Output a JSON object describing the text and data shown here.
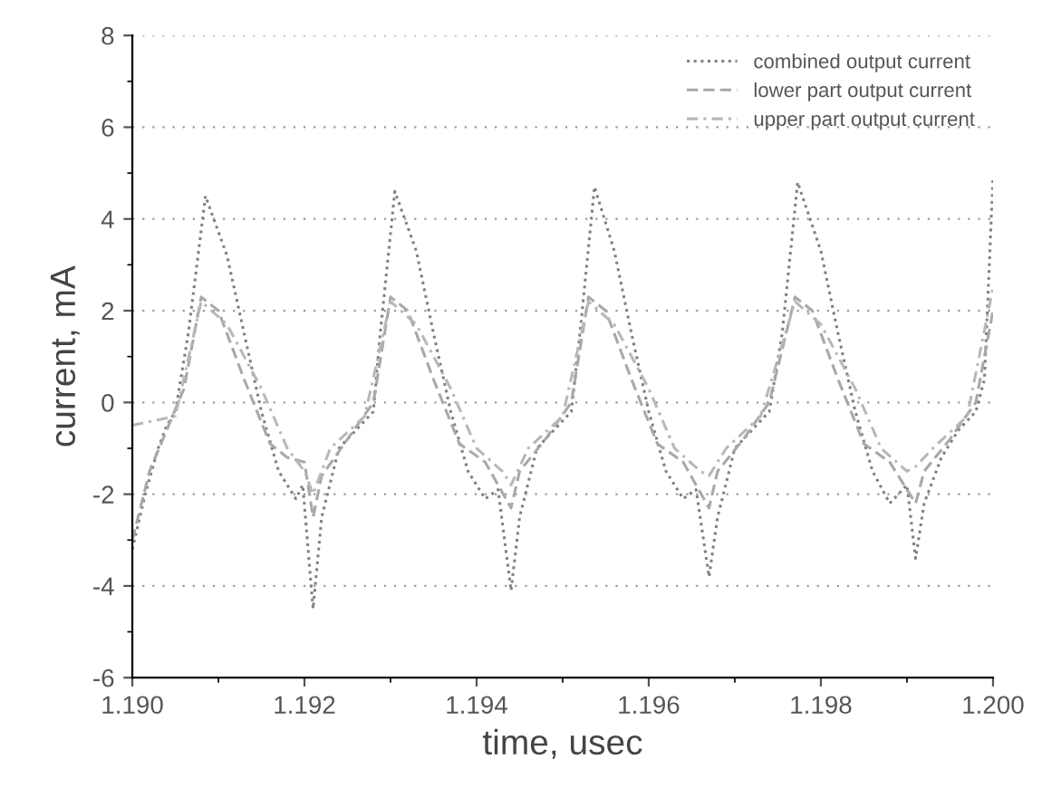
{
  "chart_data": {
    "type": "line",
    "xlabel": "time, usec",
    "ylabel": "current, mA",
    "xlim": [
      1.19,
      1.2
    ],
    "ylim": [
      -6,
      8
    ],
    "xticks": [
      {
        "value": 1.19,
        "label": "1.190"
      },
      {
        "value": 1.192,
        "label": "1.192"
      },
      {
        "value": 1.194,
        "label": "1.194"
      },
      {
        "value": 1.196,
        "label": "1.196"
      },
      {
        "value": 1.198,
        "label": "1.198"
      },
      {
        "value": 1.2,
        "label": "1.200"
      }
    ],
    "yticks": [
      -6,
      -4,
      -2,
      0,
      2,
      4,
      6,
      8
    ],
    "grid": "y",
    "legend": "top right",
    "series": [
      {
        "name": "combined output current",
        "color": "#808080",
        "line_style": "dotted",
        "x": [
          1.19,
          1.19015,
          1.1903,
          1.1904,
          1.1905,
          1.19065,
          1.19085,
          1.1911,
          1.1913,
          1.1915,
          1.1917,
          1.1919,
          1.19198,
          1.1921,
          1.1922,
          1.1924,
          1.1926,
          1.1928,
          1.19288,
          1.19305,
          1.1933,
          1.1935,
          1.1937,
          1.1939,
          1.1941,
          1.19425,
          1.1944,
          1.1945,
          1.1947,
          1.1949,
          1.1951,
          1.1952,
          1.19537,
          1.1956,
          1.1958,
          1.196,
          1.1962,
          1.1964,
          1.19655,
          1.1967,
          1.1968,
          1.197,
          1.1972,
          1.1974,
          1.19755,
          1.19773,
          1.198,
          1.1982,
          1.1984,
          1.1986,
          1.1988,
          1.199,
          1.1991,
          1.1992,
          1.1994,
          1.1996,
          1.1998,
          1.1999,
          1.2
        ],
        "values": [
          -3.2,
          -2.0,
          -1.0,
          -0.5,
          -0.2,
          1.5,
          4.5,
          3.2,
          1.5,
          -0.2,
          -1.5,
          -2.1,
          -1.8,
          -4.5,
          -2.5,
          -1.0,
          -0.6,
          -0.2,
          1.5,
          4.6,
          3.3,
          1.5,
          -0.2,
          -1.5,
          -2.1,
          -1.9,
          -4.1,
          -2.5,
          -1.0,
          -0.6,
          -0.2,
          1.5,
          4.7,
          3.3,
          1.5,
          -0.2,
          -1.5,
          -2.1,
          -1.9,
          -3.8,
          -2.5,
          -1.0,
          -0.6,
          -0.2,
          1.5,
          4.8,
          3.3,
          1.5,
          -0.2,
          -1.5,
          -2.2,
          -1.8,
          -3.4,
          -2.2,
          -1.2,
          -0.6,
          -0.2,
          0.5,
          4.9
        ]
      },
      {
        "name": "lower part output current",
        "color": "#a8a8a8",
        "line_style": "dashed",
        "x": [
          1.19,
          1.1902,
          1.1904,
          1.1906,
          1.1908,
          1.191,
          1.1913,
          1.1916,
          1.1918,
          1.192,
          1.1921,
          1.1922,
          1.1925,
          1.1928,
          1.193,
          1.1932,
          1.1935,
          1.1938,
          1.1941,
          1.1944,
          1.1945,
          1.1948,
          1.1951,
          1.1953,
          1.1955,
          1.1958,
          1.1961,
          1.1964,
          1.1967,
          1.1968,
          1.1971,
          1.1974,
          1.1977,
          1.1979,
          1.1982,
          1.1985,
          1.1988,
          1.1991,
          1.1992,
          1.1995,
          1.1998,
          1.2
        ],
        "values": [
          -3.0,
          -1.5,
          -0.6,
          0.3,
          2.3,
          2.0,
          0.5,
          -0.9,
          -1.2,
          -1.3,
          -2.5,
          -1.6,
          -0.8,
          0.0,
          2.3,
          2.0,
          0.5,
          -0.9,
          -1.3,
          -2.3,
          -1.5,
          -0.8,
          0.0,
          2.3,
          2.0,
          0.5,
          -0.9,
          -1.3,
          -2.3,
          -1.5,
          -0.8,
          0.0,
          2.3,
          2.0,
          0.5,
          -0.9,
          -1.3,
          -2.2,
          -1.5,
          -0.8,
          0.0,
          2.0
        ]
      },
      {
        "name": "upper part output current",
        "color": "#b8b8b8",
        "line_style": "dashdot",
        "x": [
          1.19,
          1.1905,
          1.1908,
          1.1911,
          1.1915,
          1.1918,
          1.192,
          1.1921,
          1.1923,
          1.1927,
          1.193,
          1.1933,
          1.1937,
          1.194,
          1.1943,
          1.1944,
          1.1946,
          1.195,
          1.1953,
          1.1956,
          1.196,
          1.1963,
          1.1966,
          1.1967,
          1.1969,
          1.1973,
          1.1977,
          1.198,
          1.1984,
          1.1987,
          1.199,
          1.1991,
          1.1993,
          1.1997,
          1.2
        ],
        "values": [
          -0.5,
          -0.3,
          2.2,
          1.7,
          0.3,
          -1.0,
          -1.5,
          -2.0,
          -1.0,
          -0.3,
          2.2,
          1.7,
          0.3,
          -1.0,
          -1.5,
          -1.8,
          -1.0,
          -0.3,
          2.2,
          1.7,
          0.3,
          -1.0,
          -1.5,
          -1.6,
          -1.0,
          -0.3,
          2.2,
          1.7,
          0.3,
          -1.0,
          -1.5,
          -1.4,
          -1.0,
          -0.3,
          2.5
        ]
      }
    ]
  }
}
